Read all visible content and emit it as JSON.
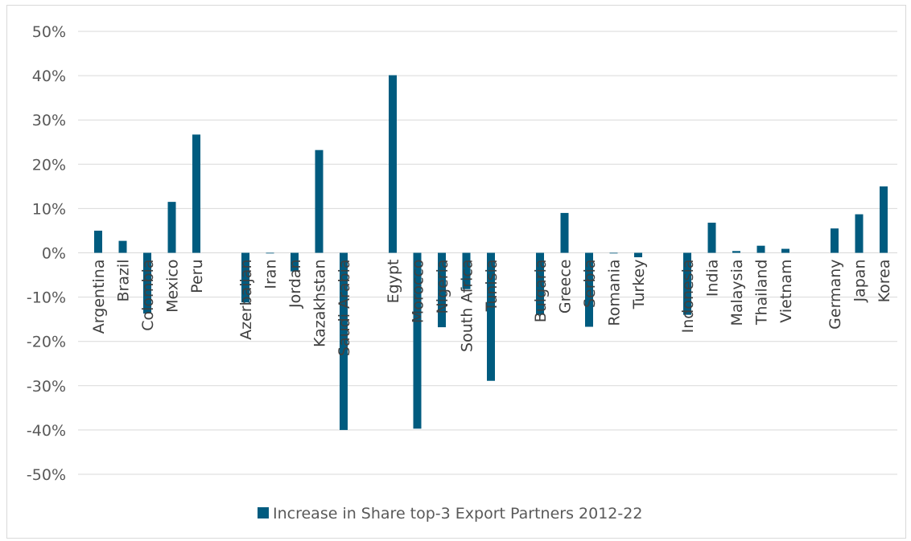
{
  "chart_data": {
    "type": "bar",
    "title": "",
    "xlabel": "",
    "ylabel": "",
    "ylim": [
      -0.5,
      0.5
    ],
    "ytick_step": 0.1,
    "yticks_labels": [
      "50%",
      "40%",
      "30%",
      "20%",
      "10%",
      "0%",
      "-10%",
      "-20%",
      "-30%",
      "-40%",
      "-50%"
    ],
    "grid": true,
    "legend_position": "bottom",
    "bar_color": "#005b7f",
    "groups": [
      [
        "Argentina",
        "Brazil",
        "Colombia",
        "Mexico",
        "Peru"
      ],
      [
        "Azerbaijan",
        "Iran",
        "Jordan",
        "Kazakhstan",
        "Saudi Arabia"
      ],
      [
        "Egypt",
        "Morocco",
        "Nigeria",
        "South Africa",
        "Tunisia"
      ],
      [
        "Bulgaria",
        "Greece",
        "Serbia",
        "Romania",
        "Turkey"
      ],
      [
        "Indonesia",
        "India",
        "Malaysia",
        "Thailand",
        "Vietnam"
      ],
      [
        "Germany",
        "Japan",
        "Korea"
      ]
    ],
    "categories": [
      "Argentina",
      "Brazil",
      "Colombia",
      "Mexico",
      "Peru",
      "Azerbaijan",
      "Iran",
      "Jordan",
      "Kazakhstan",
      "Saudi Arabia",
      "Egypt",
      "Morocco",
      "Nigeria",
      "South Africa",
      "Tunisia",
      "Bulgaria",
      "Greece",
      "Serbia",
      "Romania",
      "Turkey",
      "Indonesia",
      "India",
      "Malaysia",
      "Thailand",
      "Vietnam",
      "Germany",
      "Japan",
      "Korea"
    ],
    "series": [
      {
        "name": "Increase in Share top-3 Export Partners 2012-22",
        "values": [
          0.05,
          0.027,
          -0.137,
          0.115,
          0.267,
          -0.112,
          0.0,
          -0.042,
          0.232,
          -0.4,
          0.401,
          -0.397,
          -0.168,
          -0.082,
          -0.289,
          -0.14,
          0.09,
          -0.167,
          0.0,
          -0.01,
          -0.14,
          0.068,
          0.004,
          0.016,
          0.009,
          0.055,
          0.087,
          0.15
        ]
      }
    ]
  }
}
